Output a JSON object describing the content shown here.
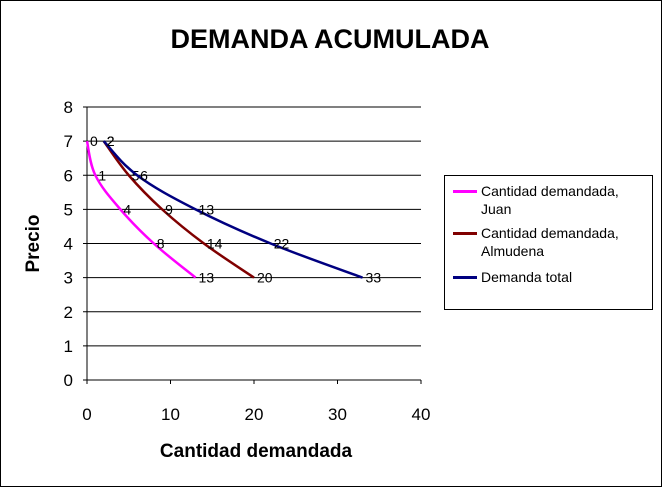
{
  "chart_data": {
    "type": "line",
    "title": "DEMANDA ACUMULADA",
    "xlabel": "Cantidad demandada",
    "ylabel": "Precio",
    "xlim": [
      0,
      40
    ],
    "ylim": [
      0,
      8
    ],
    "x_ticks": [
      "0",
      "10",
      "20",
      "30",
      "40"
    ],
    "y_ticks": [
      "0",
      "1",
      "2",
      "3",
      "4",
      "5",
      "6",
      "7",
      "8"
    ],
    "grid": "horizontal",
    "legend_position": "right",
    "series": [
      {
        "name": "Cantidad demandada, Juan",
        "name_lines": [
          "Cantidad demandada,",
          "Juan"
        ],
        "color": "#FF00FF",
        "points": [
          {
            "x": 0,
            "y": 7,
            "label": "0"
          },
          {
            "x": 1,
            "y": 6,
            "label": "1"
          },
          {
            "x": 4,
            "y": 5,
            "label": "4"
          },
          {
            "x": 8,
            "y": 4,
            "label": "8"
          },
          {
            "x": 13,
            "y": 3,
            "label": "13"
          }
        ]
      },
      {
        "name": "Cantidad demandada, Almudena",
        "name_lines": [
          "Cantidad demandada,",
          "Almudena"
        ],
        "color": "#800000",
        "points": [
          {
            "x": 2,
            "y": 7,
            "label": "2"
          },
          {
            "x": 5,
            "y": 6,
            "label": "5"
          },
          {
            "x": 9,
            "y": 5,
            "label": "9"
          },
          {
            "x": 14,
            "y": 4,
            "label": "14"
          },
          {
            "x": 20,
            "y": 3,
            "label": "20"
          }
        ]
      },
      {
        "name": "Demanda total",
        "name_lines": [
          "Demanda total"
        ],
        "color": "#000080",
        "points": [
          {
            "x": 2,
            "y": 7,
            "label": "2"
          },
          {
            "x": 6,
            "y": 6,
            "label": "6"
          },
          {
            "x": 13,
            "y": 5,
            "label": "13"
          },
          {
            "x": 22,
            "y": 4,
            "label": "22"
          },
          {
            "x": 33,
            "y": 3,
            "label": "33"
          }
        ]
      }
    ]
  }
}
